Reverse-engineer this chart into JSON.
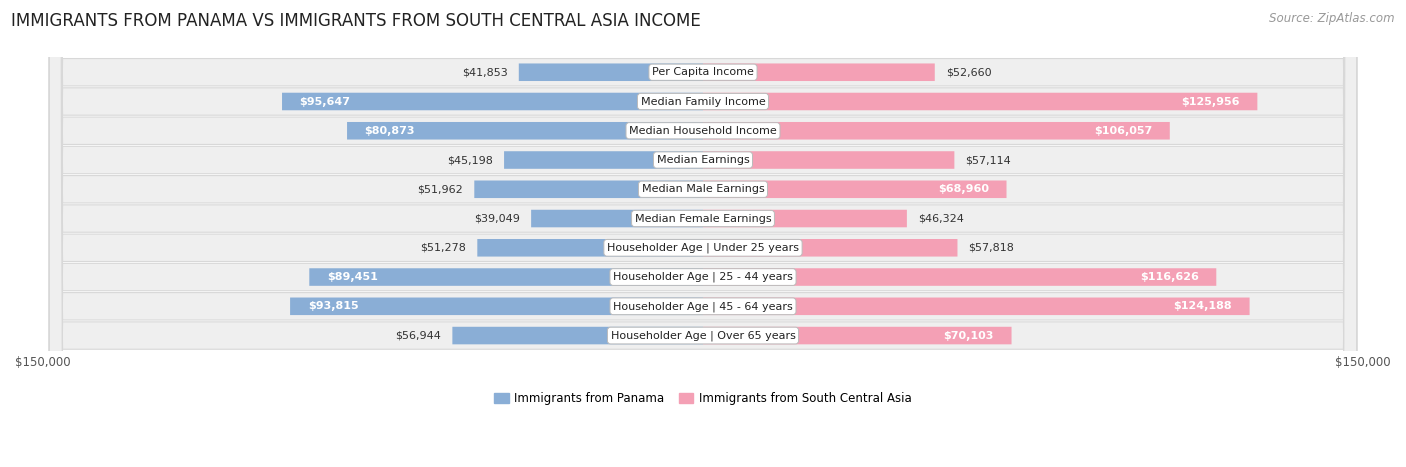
{
  "title": "IMMIGRANTS FROM PANAMA VS IMMIGRANTS FROM SOUTH CENTRAL ASIA INCOME",
  "source": "Source: ZipAtlas.com",
  "categories": [
    "Per Capita Income",
    "Median Family Income",
    "Median Household Income",
    "Median Earnings",
    "Median Male Earnings",
    "Median Female Earnings",
    "Householder Age | Under 25 years",
    "Householder Age | 25 - 44 years",
    "Householder Age | 45 - 64 years",
    "Householder Age | Over 65 years"
  ],
  "panama_values": [
    41853,
    95647,
    80873,
    45198,
    51962,
    39049,
    51278,
    89451,
    93815,
    56944
  ],
  "asia_values": [
    52660,
    125956,
    106057,
    57114,
    68960,
    46324,
    57818,
    116626,
    124188,
    70103
  ],
  "panama_color": "#8aaed6",
  "panama_color_dark": "#6090c0",
  "asia_color": "#f4a0b5",
  "asia_color_dark": "#e0607a",
  "max_value": 150000,
  "legend_panama": "Immigrants from Panama",
  "legend_asia": "Immigrants from South Central Asia",
  "row_bg_color": "#efefef",
  "row_border_color": "#d8d8d8",
  "bg_color": "#ffffff",
  "title_fontsize": 12,
  "source_fontsize": 8.5,
  "bar_label_fontsize": 8,
  "category_fontsize": 8,
  "axis_label_fontsize": 8.5,
  "panama_label_threshold": 65000,
  "asia_label_threshold": 65000
}
